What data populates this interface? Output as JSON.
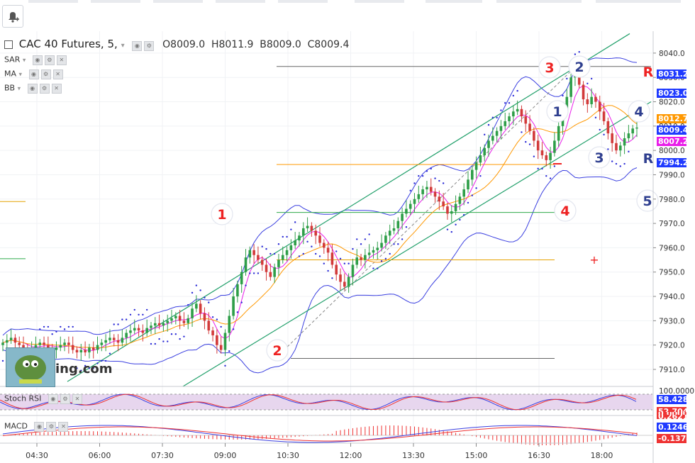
{
  "toolbar": {
    "alert_icon": "bell-plus-icon"
  },
  "header": {
    "symbol": "CAC 40 Futures, 5,",
    "open": "O8009.0",
    "high": "H8011.9",
    "bid": "B8009.0",
    "close": "C8009.4"
  },
  "indicators": {
    "sar": "SAR",
    "ma": "MA",
    "bb": "BB",
    "stoch": "Stoch RSI",
    "macd": "MACD"
  },
  "logo_text": "ing.com",
  "price_axis": {
    "ticks": [
      "8040.0",
      "8030.0",
      "8020.0",
      "8010.0",
      "8000.0",
      "7990.0",
      "7980.0",
      "7970.0",
      "7960.0",
      "7950.0",
      "7940.0",
      "7930.0",
      "7920.0",
      "7910.0"
    ],
    "tags": [
      {
        "label": "8031.2",
        "color": "#1f3aff"
      },
      {
        "label": "8023.0",
        "color": "#1f3aff"
      },
      {
        "label": "8012.7",
        "color": "#ff9800"
      },
      {
        "label": "8009.4",
        "color": "#1f3aff"
      },
      {
        "label": "8007.2",
        "color": "#e91ee9"
      },
      {
        "label": "7994.2",
        "color": "#1f3aff"
      }
    ]
  },
  "stoch_axis": {
    "ticks": [
      "100.0000"
    ],
    "tags": [
      {
        "label": "58.4280",
        "color": "#1f3aff"
      },
      {
        "label": "52.7044",
        "color": "#ee3333"
      },
      {
        "label": "0.0000",
        "color": "#ee3333"
      }
    ]
  },
  "macd_axis": {
    "tags": [
      {
        "label": "0.2621",
        "color": "#ee3333"
      },
      {
        "label": "0.1246",
        "color": "#1f3aff"
      },
      {
        "label": "-0.1374",
        "color": "#ee3333"
      }
    ]
  },
  "time_axis": [
    "04:30",
    "06:00",
    "07:30",
    "09:00",
    "10:30",
    "12:00",
    "13:30",
    "15:00",
    "16:30",
    "18:00"
  ],
  "annotations": [
    {
      "label": "1",
      "color": "#ee2222"
    },
    {
      "label": "2",
      "color": "#ee2222"
    },
    {
      "label": "3",
      "color": "#ee2222"
    },
    {
      "label": "4",
      "color": "#ee2222"
    },
    {
      "label": "1",
      "color": "#2f3f8f"
    },
    {
      "label": "2",
      "color": "#2f3f8f"
    },
    {
      "label": "3",
      "color": "#2f3f8f"
    },
    {
      "label": "4",
      "color": "#2f3f8f"
    },
    {
      "label": "5",
      "color": "#2f3f8f"
    },
    {
      "label": "R",
      "color": "#ee2222"
    },
    {
      "label": "R",
      "color": "#2f3f8f"
    }
  ],
  "chart_data": {
    "type": "candlestick",
    "interval": "5",
    "ylim": [
      7903,
      8049
    ],
    "price_levels": [
      {
        "value": 8034.5,
        "color": "#666666"
      },
      {
        "value": 7994.2,
        "color": "#ff9800"
      },
      {
        "value": 7974.5,
        "color": "#2eaa4a"
      },
      {
        "value": 7955.0,
        "color": "#e6a100"
      },
      {
        "value": 7914.5,
        "color": "#666666"
      }
    ],
    "series_close": [
      7921,
      7922,
      7923,
      7921,
      7920,
      7919,
      7918,
      7919,
      7920,
      7921,
      7920,
      7919,
      7918,
      7919,
      7920,
      7921,
      7920,
      7918,
      7917,
      7918,
      7917,
      7919,
      7918,
      7920,
      7921,
      7922,
      7923,
      7922,
      7921,
      7923,
      7925,
      7926,
      7927,
      7926,
      7925,
      7927,
      7928,
      7929,
      7928,
      7929,
      7930,
      7931,
      7932,
      7930,
      7929,
      7931,
      7935,
      7937,
      7933,
      7930,
      7926,
      7924,
      7920,
      7918,
      7925,
      7932,
      7940,
      7945,
      7950,
      7956,
      7959,
      7957,
      7955,
      7953,
      7950,
      7948,
      7952,
      7955,
      7957,
      7959,
      7961,
      7963,
      7965,
      7968,
      7969,
      7967,
      7965,
      7962,
      7960,
      7958,
      7953,
      7949,
      7946,
      7944,
      7948,
      7953,
      7956,
      7955,
      7957,
      7958,
      7959,
      7960,
      7962,
      7965,
      7967,
      7968,
      7971,
      7974,
      7976,
      7978,
      7980,
      7982,
      7984,
      7985,
      7983,
      7981,
      7979,
      7977,
      7974,
      7975,
      7978,
      7981,
      7984,
      7988,
      7992,
      7995,
      7998,
      8001,
      8004,
      8006,
      8008,
      8010,
      8012,
      8014,
      8016,
      8017,
      8014,
      8011,
      8008,
      8004,
      8000,
      7998,
      7996,
      7999,
      8004,
      8010,
      8016,
      8022,
      8030,
      8033,
      8027,
      8021,
      8019,
      8022,
      8020,
      8016,
      8012,
      8007,
      8003,
      8000,
      8002,
      8005,
      8007,
      8009,
      8009.4
    ]
  }
}
